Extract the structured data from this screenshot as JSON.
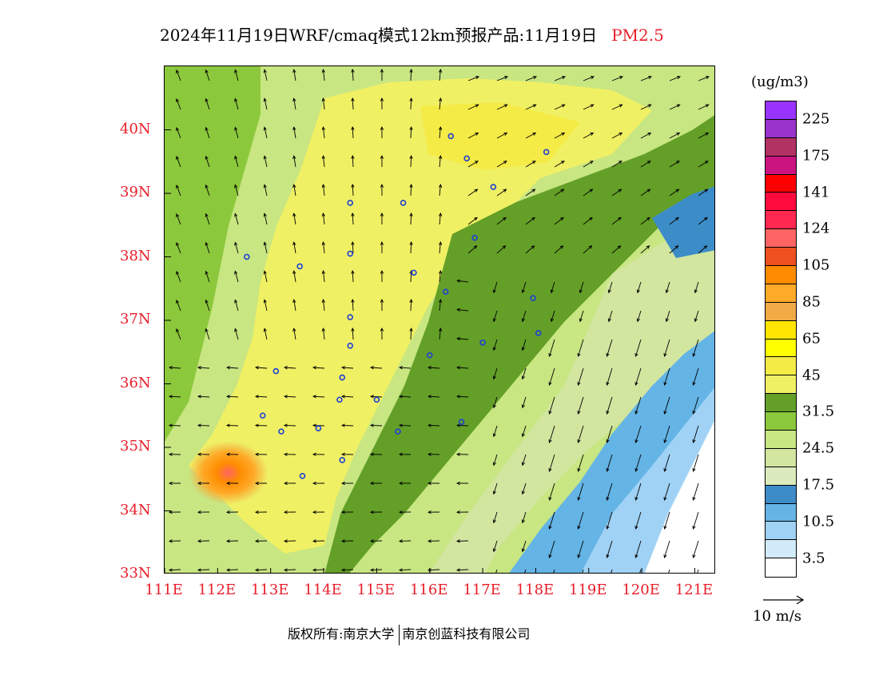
{
  "title": {
    "text": "2024年11月19日WRF/cmaq模式12km预报产品:11月19日",
    "variable": "PM2.5"
  },
  "map": {
    "lon_range": [
      111,
      121.4
    ],
    "lat_range": [
      33,
      41
    ],
    "lat_ticks": [
      "33N",
      "34N",
      "35N",
      "36N",
      "37N",
      "38N",
      "39N",
      "40N"
    ],
    "lon_ticks": [
      "111E",
      "112E",
      "113E",
      "114E",
      "115E",
      "116E",
      "117E",
      "118E",
      "119E",
      "120E",
      "121E"
    ],
    "hotspot": {
      "lon": 112.2,
      "lat": 34.6
    },
    "stations": [
      {
        "lon": 116.4,
        "lat": 39.9
      },
      {
        "lon": 116.7,
        "lat": 39.55
      },
      {
        "lon": 117.2,
        "lat": 39.1
      },
      {
        "lon": 118.2,
        "lat": 39.65
      },
      {
        "lon": 114.5,
        "lat": 38.85
      },
      {
        "lon": 115.5,
        "lat": 38.85
      },
      {
        "lon": 116.85,
        "lat": 38.3
      },
      {
        "lon": 112.55,
        "lat": 38.0
      },
      {
        "lon": 113.55,
        "lat": 37.85
      },
      {
        "lon": 114.5,
        "lat": 38.05
      },
      {
        "lon": 115.7,
        "lat": 37.75
      },
      {
        "lon": 116.3,
        "lat": 37.45
      },
      {
        "lon": 117.95,
        "lat": 37.35
      },
      {
        "lon": 114.5,
        "lat": 37.05
      },
      {
        "lon": 114.5,
        "lat": 36.6
      },
      {
        "lon": 116.0,
        "lat": 36.45
      },
      {
        "lon": 117.0,
        "lat": 36.65
      },
      {
        "lon": 118.05,
        "lat": 36.8
      },
      {
        "lon": 113.1,
        "lat": 36.2
      },
      {
        "lon": 114.35,
        "lat": 36.1
      },
      {
        "lon": 114.3,
        "lat": 35.75
      },
      {
        "lon": 115.0,
        "lat": 35.75
      },
      {
        "lon": 112.85,
        "lat": 35.5
      },
      {
        "lon": 113.2,
        "lat": 35.25
      },
      {
        "lon": 113.9,
        "lat": 35.3
      },
      {
        "lon": 115.4,
        "lat": 35.25
      },
      {
        "lon": 116.6,
        "lat": 35.4
      },
      {
        "lon": 114.35,
        "lat": 34.8
      },
      {
        "lon": 113.6,
        "lat": 34.55
      }
    ]
  },
  "colorbar": {
    "unit": "(ug/m3)",
    "colors": [
      "#9933ff",
      "#9933cc",
      "#b23264",
      "#cc1480",
      "#ff0000",
      "#ff0a3c",
      "#ff2850",
      "#ff6464",
      "#ee5020",
      "#ff8c00",
      "#ffaa28",
      "#f0aa46",
      "#ffe600",
      "#ffff00",
      "#f5eb46",
      "#f0f064",
      "#64a028",
      "#8cc83c",
      "#c8e682",
      "#d2e6a0",
      "#dcebbe",
      "#3c8cc8",
      "#64b4e6",
      "#a0d2f5",
      "#d2ebfa",
      "#ffffff"
    ],
    "labels": [
      "225",
      "175",
      "141",
      "124",
      "105",
      "85",
      "65",
      "45",
      "31.5",
      "24.5",
      "17.5",
      "10.5",
      "3.5"
    ]
  },
  "wind": {
    "reference_label": "10 m/s"
  },
  "footer": {
    "copyright": "版权所有:南京大学",
    "company": "南京创蓝科技有限公司"
  }
}
